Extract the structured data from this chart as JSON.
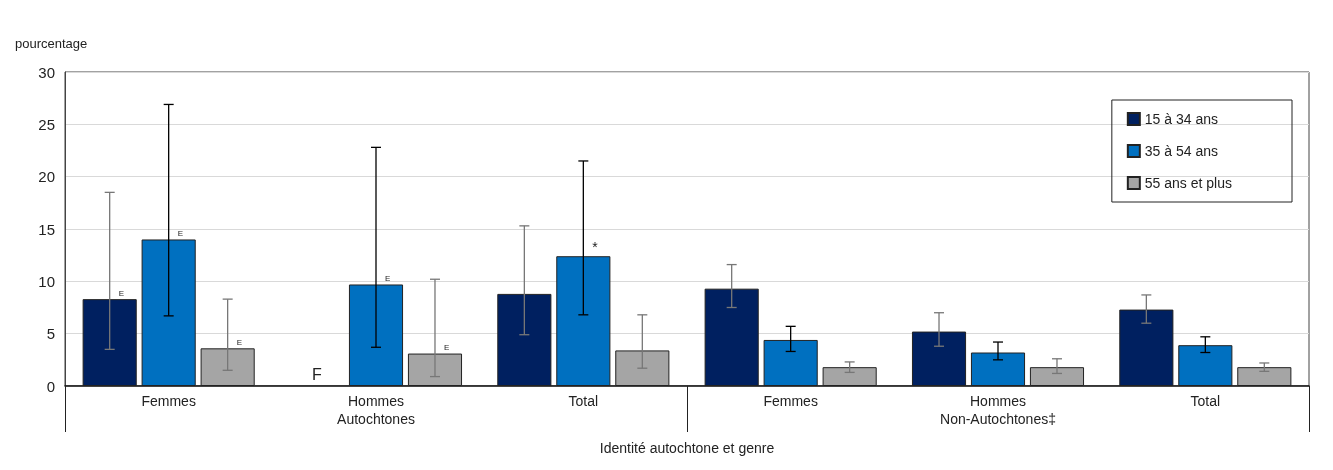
{
  "chart_data": {
    "type": "bar",
    "ylabel": "pourcentage",
    "xlabel": "Identité autochtone et genre",
    "categories": [
      "Femmes",
      "Hommes",
      "Total",
      "Femmes",
      "Hommes",
      "Total"
    ],
    "annotations": [
      "Autochtones",
      "Non-Autochtones‡"
    ],
    "series": [
      {
        "name": "15 à 34 ans",
        "color": "#002060",
        "values": [
          8.3,
          null,
          8.8,
          9.3,
          5.2,
          7.3
        ],
        "errors": [
          [
            3.5,
            18.5
          ],
          null,
          [
            4.9,
            15.3
          ],
          [
            7.5,
            11.6
          ],
          [
            3.8,
            7.0
          ],
          [
            6.0,
            8.7
          ]
        ],
        "value_labels": [
          "E",
          "F",
          null,
          null,
          null,
          null
        ]
      },
      {
        "name": "35 à 54 ans",
        "color": "#0070c0",
        "values": [
          14.0,
          9.7,
          12.4,
          4.4,
          3.2,
          3.9
        ],
        "errors": [
          [
            6.7,
            26.9
          ],
          [
            3.7,
            22.8
          ],
          [
            6.8,
            21.5
          ],
          [
            3.3,
            5.7
          ],
          [
            2.5,
            4.2
          ],
          [
            3.2,
            4.7
          ]
        ],
        "value_labels": [
          "E",
          "E",
          "*",
          null,
          null,
          null
        ]
      },
      {
        "name": "55 ans et plus",
        "color": "#a5a5a5",
        "values": [
          3.6,
          3.1,
          3.4,
          1.8,
          1.8,
          1.8
        ],
        "errors": [
          [
            1.5,
            8.3
          ],
          [
            0.9,
            10.2
          ],
          [
            1.7,
            6.8
          ],
          [
            1.3,
            2.3
          ],
          [
            1.2,
            2.6
          ],
          [
            1.4,
            2.2
          ]
        ],
        "value_labels": [
          "E",
          "E",
          null,
          null,
          null,
          null
        ]
      }
    ],
    "ylim": [
      0,
      30
    ],
    "yticks": [
      0,
      5,
      10,
      15,
      20,
      25,
      30
    ],
    "grid": "y",
    "legend": "top right"
  }
}
